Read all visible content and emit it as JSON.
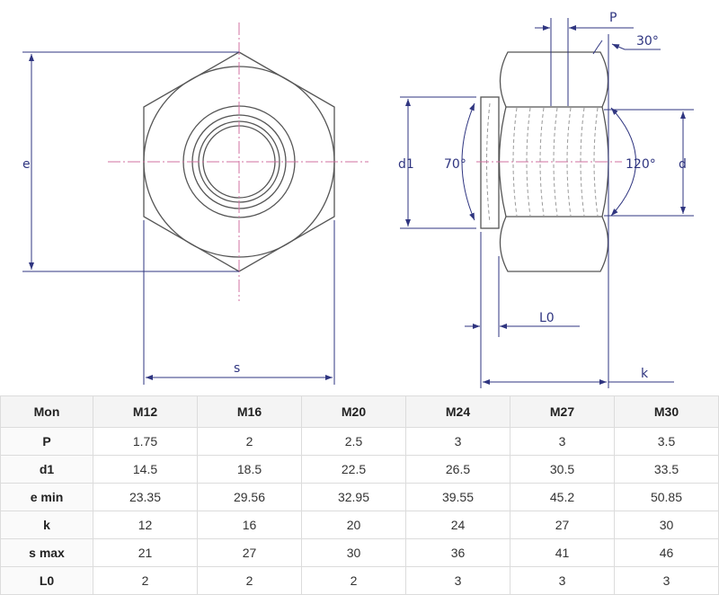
{
  "drawing": {
    "labels": {
      "e": "e",
      "s": "s",
      "d1": "d1",
      "angle70": "70°",
      "angle120": "120°",
      "d": "d",
      "P": "P",
      "angle30": "30°",
      "L0": "L0",
      "k": "k"
    },
    "colors": {
      "dimension": "#2f3580",
      "outline": "#555555",
      "centerline": "#d070a0"
    }
  },
  "table": {
    "headers": [
      "Mon",
      "M12",
      "M16",
      "M20",
      "M24",
      "M27",
      "M30"
    ],
    "rows": [
      [
        "P",
        "1.75",
        "2",
        "2.5",
        "3",
        "3",
        "3.5"
      ],
      [
        "d1",
        "14.5",
        "18.5",
        "22.5",
        "26.5",
        "30.5",
        "33.5"
      ],
      [
        "e min",
        "23.35",
        "29.56",
        "32.95",
        "39.55",
        "45.2",
        "50.85"
      ],
      [
        "k",
        "12",
        "16",
        "20",
        "24",
        "27",
        "30"
      ],
      [
        "s max",
        "21",
        "27",
        "30",
        "36",
        "41",
        "46"
      ],
      [
        "L0",
        "2",
        "2",
        "2",
        "3",
        "3",
        "3"
      ]
    ]
  }
}
